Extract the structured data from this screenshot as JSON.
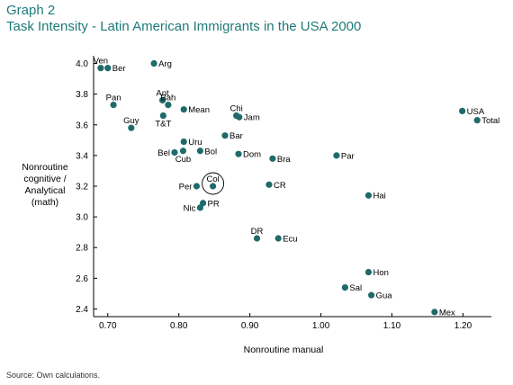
{
  "header": {
    "graph_label": "Graph 2",
    "title": "Task Intensity - Latin American Immigrants in the USA 2000"
  },
  "footer": {
    "source": "Source: Own calculations."
  },
  "colors": {
    "marker": "#1f6b6b",
    "title": "#1f7a7a"
  },
  "chart_data": {
    "type": "scatter",
    "title": "Task Intensity - Latin American Immigrants in the USA 2000",
    "xlabel": "Nonroutine manual",
    "ylabel": [
      "Nonroutine",
      "cognitive /",
      "Analytical",
      "(math)"
    ],
    "xlim": [
      0.68,
      1.24
    ],
    "ylim": [
      2.35,
      4.05
    ],
    "x_ticks": [
      "0.70",
      "0.80",
      "0.90",
      "1.00",
      "1.10",
      "1.20"
    ],
    "y_ticks": [
      "2.4",
      "2.6",
      "2.8",
      "3.0",
      "3.2",
      "3.4",
      "3.6",
      "3.8",
      "4.0"
    ],
    "grid": false,
    "points": [
      {
        "label": "Ven",
        "x": 0.69,
        "y": 3.97,
        "label_pos": "above"
      },
      {
        "label": "Ber",
        "x": 0.7,
        "y": 3.97,
        "label_pos": "right"
      },
      {
        "label": "Arg",
        "x": 0.765,
        "y": 4.0,
        "label_pos": "right"
      },
      {
        "label": "Pan",
        "x": 0.708,
        "y": 3.73,
        "label_pos": "above"
      },
      {
        "label": "Ant",
        "x": 0.777,
        "y": 3.76,
        "label_pos": "above"
      },
      {
        "label": "Bah",
        "x": 0.785,
        "y": 3.73,
        "label_pos": "above"
      },
      {
        "label": "Mean",
        "x": 0.807,
        "y": 3.7,
        "label_pos": "right"
      },
      {
        "label": "T&T",
        "x": 0.778,
        "y": 3.66,
        "label_pos": "below"
      },
      {
        "label": "Guy",
        "x": 0.733,
        "y": 3.58,
        "label_pos": "above"
      },
      {
        "label": "Chi",
        "x": 0.881,
        "y": 3.66,
        "label_pos": "above"
      },
      {
        "label": "Jam",
        "x": 0.885,
        "y": 3.65,
        "label_pos": "right"
      },
      {
        "label": "Bar",
        "x": 0.865,
        "y": 3.53,
        "label_pos": "right"
      },
      {
        "label": "Uru",
        "x": 0.807,
        "y": 3.49,
        "label_pos": "right"
      },
      {
        "label": "Bel",
        "x": 0.794,
        "y": 3.42,
        "label_pos": "left"
      },
      {
        "label": "Cub",
        "x": 0.806,
        "y": 3.43,
        "label_pos": "below"
      },
      {
        "label": "Bol",
        "x": 0.83,
        "y": 3.43,
        "label_pos": "right"
      },
      {
        "label": "Dom",
        "x": 0.884,
        "y": 3.41,
        "label_pos": "right"
      },
      {
        "label": "Bra",
        "x": 0.932,
        "y": 3.38,
        "label_pos": "right"
      },
      {
        "label": "Par",
        "x": 1.022,
        "y": 3.4,
        "label_pos": "right"
      },
      {
        "label": "USA",
        "x": 1.199,
        "y": 3.69,
        "label_pos": "right"
      },
      {
        "label": "Total",
        "x": 1.22,
        "y": 3.63,
        "label_pos": "right"
      },
      {
        "label": "Per",
        "x": 0.825,
        "y": 3.2,
        "label_pos": "left"
      },
      {
        "label": "Col",
        "x": 0.848,
        "y": 3.2,
        "label_pos": "above",
        "highlight": true
      },
      {
        "label": "CR",
        "x": 0.927,
        "y": 3.21,
        "label_pos": "right"
      },
      {
        "label": "Hai",
        "x": 1.067,
        "y": 3.14,
        "label_pos": "right"
      },
      {
        "label": "PR",
        "x": 0.834,
        "y": 3.09,
        "label_pos": "right"
      },
      {
        "label": "Nic",
        "x": 0.83,
        "y": 3.06,
        "label_pos": "left"
      },
      {
        "label": "DR",
        "x": 0.91,
        "y": 2.86,
        "label_pos": "above"
      },
      {
        "label": "Ecu",
        "x": 0.94,
        "y": 2.86,
        "label_pos": "right"
      },
      {
        "label": "Hon",
        "x": 1.067,
        "y": 2.64,
        "label_pos": "right"
      },
      {
        "label": "Sal",
        "x": 1.034,
        "y": 2.54,
        "label_pos": "right"
      },
      {
        "label": "Gua",
        "x": 1.071,
        "y": 2.49,
        "label_pos": "right"
      },
      {
        "label": "Mex",
        "x": 1.16,
        "y": 2.38,
        "label_pos": "right"
      }
    ]
  }
}
